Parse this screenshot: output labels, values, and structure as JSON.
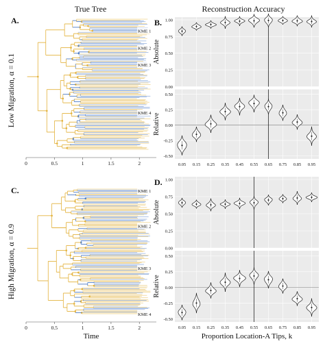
{
  "titles": {
    "left": "True Tree",
    "right": "Reconstruction Accuracy"
  },
  "rows": [
    {
      "label": "Low Migration, α = 0.1"
    },
    {
      "label": "High Migration, α = 0.9"
    }
  ],
  "colors": {
    "location_a": "#e3b23c",
    "location_b": "#4d7cc7",
    "panel_bg": "#ebebeb"
  },
  "chart_data": [
    {
      "type": "tree",
      "panel_label": "A.",
      "xlabel": "",
      "xticks": [
        0,
        0.5,
        1,
        1.5,
        2
      ],
      "xlim": [
        0,
        2.3
      ],
      "clade_labels": [
        "KME 1",
        "KME 2",
        "KME 3",
        "KME 4"
      ],
      "clade_label_y": [
        0.12,
        0.24,
        0.36,
        0.7
      ]
    },
    {
      "type": "violin",
      "panel_label": "B.",
      "top": {
        "ylabel": "Absolute",
        "yticks": [
          "0.00",
          "0.25",
          "0.50",
          "0.75",
          "1.00"
        ],
        "ylim": [
          0,
          1.04
        ],
        "medians": [
          0.83,
          0.9,
          0.93,
          0.96,
          0.98,
          0.985,
          0.99,
          0.99,
          0.985,
          0.975
        ]
      },
      "bottom": {
        "ylabel": "Relative",
        "yticks": [
          "0.50",
          "0.25",
          "0.00",
          "-0.25",
          "-0.50"
        ],
        "ylim": [
          -0.55,
          0.58
        ],
        "medians": [
          -0.33,
          -0.15,
          0.02,
          0.22,
          0.3,
          0.35,
          0.3,
          0.2,
          0.05,
          -0.18
        ]
      },
      "categories": [
        "0.05",
        "0.15",
        "0.25",
        "0.35",
        "0.45",
        "0.55",
        "0.65",
        "0.75",
        "0.85",
        "0.95"
      ],
      "vline_at": "0.65",
      "xlabel": ""
    },
    {
      "type": "tree",
      "panel_label": "C.",
      "xlabel": "Time",
      "xticks": [
        0,
        0.5,
        1,
        1.5,
        2
      ],
      "xlim": [
        0,
        2.3
      ],
      "clade_labels": [
        "KME 1",
        "KME 2",
        "KME 3",
        "KME 4"
      ],
      "clade_label_y": [
        0.05,
        0.31,
        0.62,
        0.96
      ]
    },
    {
      "type": "violin",
      "panel_label": "D.",
      "top": {
        "ylabel": "Absolute",
        "yticks": [
          "0.00",
          "0.25",
          "0.50",
          "0.75",
          "1.00"
        ],
        "ylim": [
          0,
          1.04
        ],
        "medians": [
          0.66,
          0.64,
          0.63,
          0.64,
          0.65,
          0.66,
          0.7,
          0.72,
          0.73,
          0.74
        ]
      },
      "bottom": {
        "ylabel": "Relative",
        "yticks": [
          "0.50",
          "0.25",
          "0.00",
          "-0.25",
          "-0.50"
        ],
        "ylim": [
          -0.55,
          0.58
        ],
        "medians": [
          -0.4,
          -0.25,
          -0.05,
          0.08,
          0.14,
          0.18,
          0.12,
          0.02,
          -0.18,
          -0.32
        ]
      },
      "categories": [
        "0.05",
        "0.15",
        "0.25",
        "0.35",
        "0.45",
        "0.55",
        "0.65",
        "0.75",
        "0.85",
        "0.95"
      ],
      "vline_at": "0.55",
      "xlabel": "Proportion Location-A Tips, k"
    }
  ]
}
